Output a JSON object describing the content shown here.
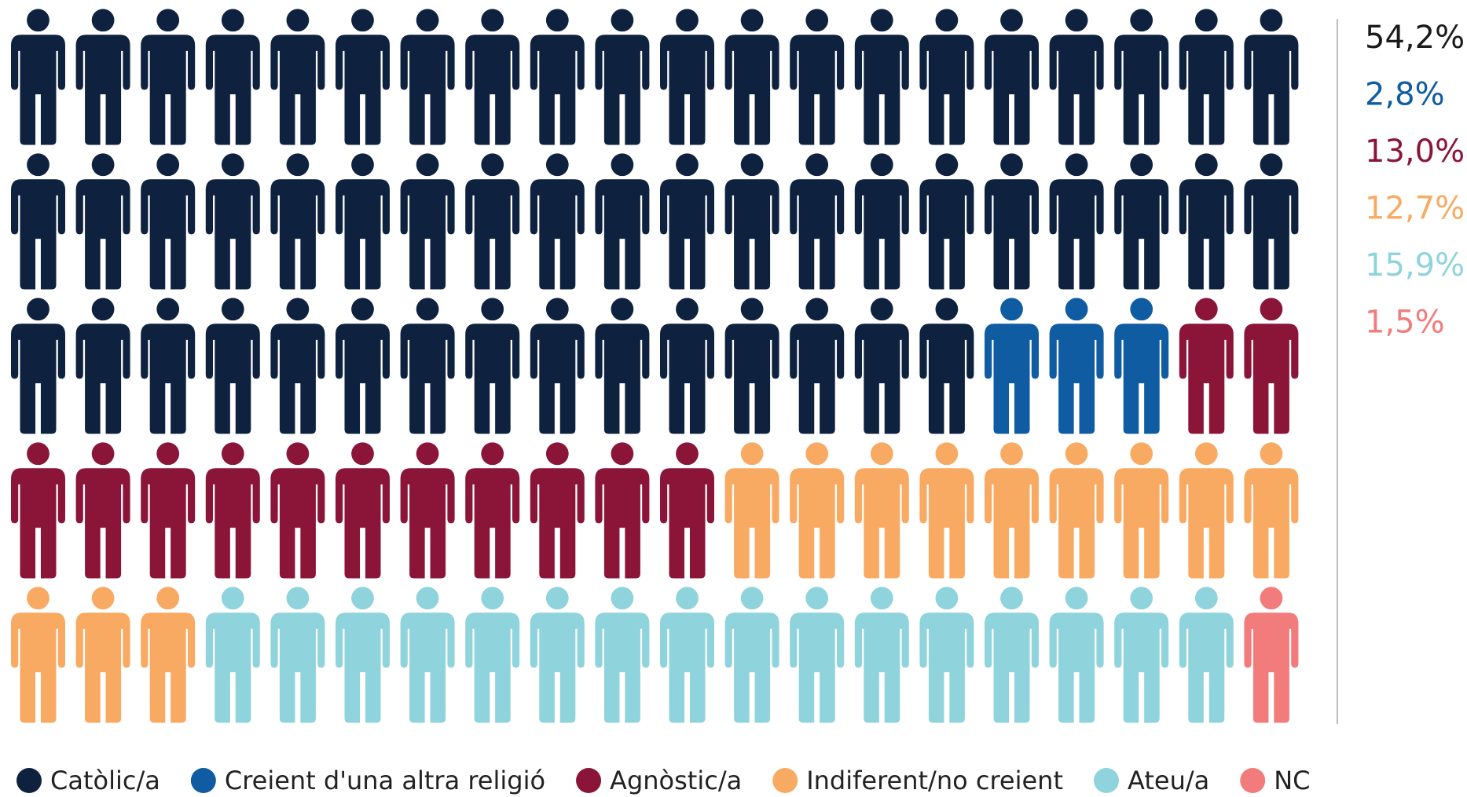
{
  "chart_data": {
    "type": "pictogram",
    "series": [
      {
        "name": "Catòlic/a",
        "color": "#0e2240",
        "icons": 55,
        "values": [
          54.2
        ],
        "value_labels": [
          "54,2%"
        ]
      },
      {
        "name": "Creient d'una altra religió",
        "color": "#0f5ca3",
        "icons": 3,
        "values": [
          2.8
        ],
        "value_labels": [
          "2,8%"
        ]
      },
      {
        "name": "Agnòstic/a",
        "color": "#8a1538",
        "icons": 13,
        "values": [
          13.0
        ],
        "value_labels": [
          "13,0%"
        ]
      },
      {
        "name": "Indiferent/no creient",
        "color": "#f8aa63",
        "icons": 12,
        "values": [
          12.7
        ],
        "value_labels": [
          "12,7%"
        ]
      },
      {
        "name": "Ateu/a",
        "color": "#8fd3dc",
        "icons": 16,
        "values": [
          15.9
        ],
        "value_labels": [
          "15,9%"
        ]
      },
      {
        "name": "NC",
        "color": "#f27c7c",
        "icons": 1,
        "values": [
          1.5
        ],
        "value_labels": [
          "1,5%"
        ]
      }
    ]
  }
}
